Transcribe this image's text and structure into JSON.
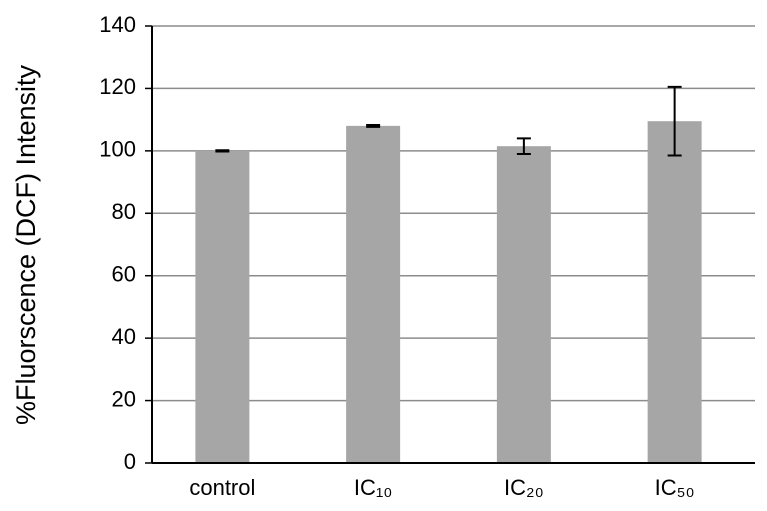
{
  "chart_data": {
    "type": "bar",
    "y_label": "%Fluorscence  (DCF) Intensity",
    "categories": [
      "control",
      "IC₁₀",
      "IC₂₀",
      "IC₅₀"
    ],
    "values": [
      100,
      108,
      101.5,
      109.5
    ],
    "errors": [
      0.2,
      0.3,
      2.5,
      11
    ],
    "color": "#a6a6a6",
    "ylim": [
      0,
      140
    ],
    "yticks": [
      0,
      20,
      40,
      60,
      80,
      100,
      120,
      140
    ],
    "grid": true
  }
}
